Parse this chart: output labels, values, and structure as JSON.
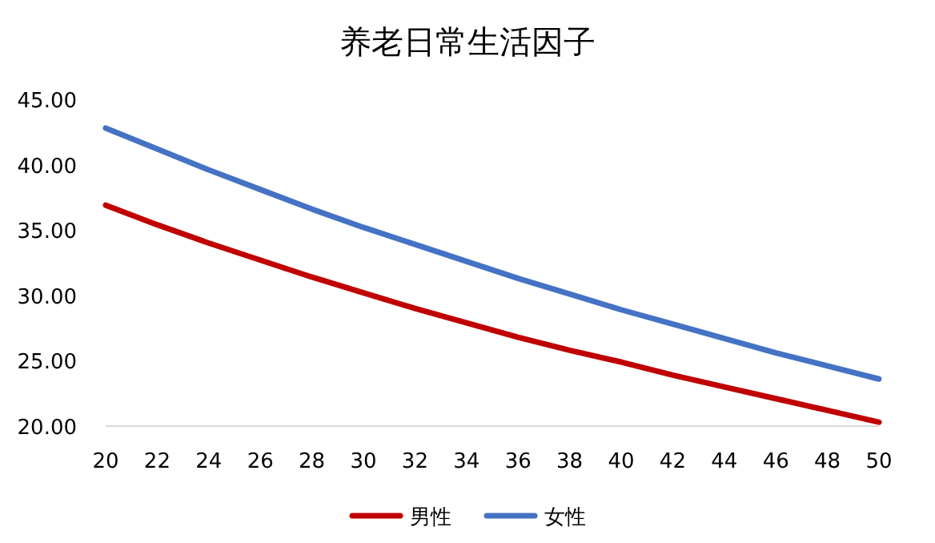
{
  "chart_data": {
    "type": "line",
    "title": "养老日常生活因子",
    "x": [
      20,
      22,
      24,
      26,
      28,
      30,
      32,
      34,
      36,
      38,
      40,
      42,
      44,
      46,
      48,
      50
    ],
    "xlim": [
      20,
      50
    ],
    "xticks": [
      20,
      22,
      24,
      26,
      28,
      30,
      32,
      34,
      36,
      38,
      40,
      42,
      44,
      46,
      48,
      50
    ],
    "ylim": [
      20,
      45
    ],
    "yticks": [
      {
        "value": 20,
        "label": "20.00"
      },
      {
        "value": 25,
        "label": "25.00"
      },
      {
        "value": 30,
        "label": "30.00"
      },
      {
        "value": 35,
        "label": "35.00"
      },
      {
        "value": 40,
        "label": "40.00"
      },
      {
        "value": 45,
        "label": "45.00"
      }
    ],
    "series": [
      {
        "name": "男性",
        "color": "#c00000",
        "values": [
          36.9,
          35.4,
          34.0,
          32.7,
          31.4,
          30.2,
          29.0,
          27.9,
          26.8,
          25.8,
          24.9,
          23.9,
          23.0,
          22.1,
          21.2,
          20.3
        ]
      },
      {
        "name": "女性",
        "color": "#4472c4",
        "values": [
          42.8,
          41.2,
          39.6,
          38.1,
          36.6,
          35.2,
          33.9,
          32.6,
          31.3,
          30.1,
          28.9,
          27.8,
          26.7,
          25.6,
          24.6,
          23.6
        ]
      }
    ],
    "legend": "bottom",
    "marker": "none",
    "line_style": "solid",
    "grid": false
  }
}
